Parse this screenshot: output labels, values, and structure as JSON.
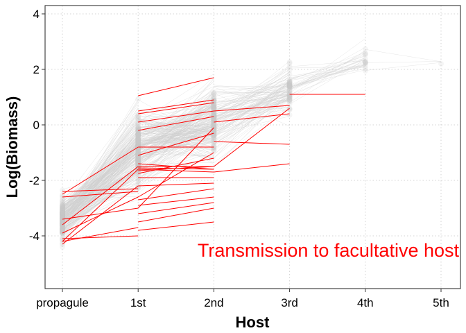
{
  "chart_data": {
    "type": "line",
    "xlabel": "Host",
    "ylabel": "Log(Biomass)",
    "categories": [
      "propagule",
      "1st",
      "2nd",
      "3rd",
      "4th",
      "5th"
    ],
    "y_ticks": [
      -4,
      -2,
      0,
      2,
      4
    ],
    "ylim": [
      -5.9,
      4.3
    ],
    "grid": "dotted",
    "annotation": "Transmission to facultative host",
    "colors": {
      "background_series": "#cfcfcf",
      "highlight_series": "#ff0000",
      "points": "#c8c8c8",
      "grid": "#d3d3d3",
      "annotation": "#ff0000"
    },
    "series": [
      {
        "values": [
          -2.4,
          -2.3,
          null,
          null,
          null,
          null
        ]
      },
      {
        "values": [
          -2.5,
          -0.8,
          null,
          null,
          null,
          null
        ]
      },
      {
        "values": [
          -3.6,
          -1.5,
          null,
          null,
          null,
          null
        ]
      },
      {
        "values": [
          -4.2,
          -3.7,
          null,
          null,
          null,
          null
        ]
      },
      {
        "values": [
          -4.1,
          -4.0,
          null,
          null,
          null,
          null
        ]
      },
      {
        "values": [
          -4.3,
          -2.2,
          null,
          null,
          null,
          null
        ]
      },
      {
        "values": [
          -4.2,
          -1.6,
          null,
          null,
          null,
          null
        ]
      },
      {
        "values": [
          -2.6,
          -2.4,
          null,
          null,
          null,
          null
        ]
      },
      {
        "values": [
          -3.4,
          -3.0,
          null,
          null,
          null,
          null
        ]
      },
      {
        "values": [
          -3.9,
          -2.6,
          null,
          null,
          null,
          null
        ]
      },
      {
        "values": [
          null,
          1.05,
          1.7,
          null,
          null,
          null
        ]
      },
      {
        "values": [
          null,
          0.5,
          0.9,
          null,
          null,
          null
        ]
      },
      {
        "values": [
          null,
          0.4,
          0.8,
          null,
          null,
          null
        ]
      },
      {
        "values": [
          null,
          0.1,
          0.5,
          null,
          null,
          null
        ]
      },
      {
        "values": [
          null,
          -0.2,
          0.3,
          null,
          null,
          null
        ]
      },
      {
        "values": [
          null,
          -0.8,
          -0.8,
          null,
          null,
          null
        ]
      },
      {
        "values": [
          null,
          -1.1,
          -0.3,
          null,
          null,
          null
        ]
      },
      {
        "values": [
          null,
          -1.4,
          -1.6,
          null,
          null,
          null
        ]
      },
      {
        "values": [
          null,
          -1.5,
          -1.5,
          null,
          null,
          null
        ]
      },
      {
        "values": [
          null,
          -1.55,
          -1.6,
          null,
          null,
          null
        ]
      },
      {
        "values": [
          null,
          -1.6,
          -1.7,
          null,
          null,
          null
        ]
      },
      {
        "values": [
          null,
          -1.65,
          -1.5,
          null,
          null,
          null
        ]
      },
      {
        "values": [
          null,
          -1.75,
          -1.2,
          null,
          null,
          null
        ]
      },
      {
        "values": [
          null,
          -1.9,
          -1.9,
          null,
          null,
          null
        ]
      },
      {
        "values": [
          null,
          -2.2,
          -2.1,
          null,
          null,
          null
        ]
      },
      {
        "values": [
          null,
          -2.6,
          -1.0,
          null,
          null,
          null
        ]
      },
      {
        "values": [
          null,
          -2.7,
          -2.3,
          null,
          null,
          null
        ]
      },
      {
        "values": [
          null,
          -2.9,
          -2.6,
          null,
          null,
          null
        ]
      },
      {
        "values": [
          null,
          -3.2,
          -2.8,
          null,
          null,
          null
        ]
      },
      {
        "values": [
          null,
          -3.5,
          -3.0,
          null,
          null,
          null
        ]
      },
      {
        "values": [
          null,
          -3.8,
          -3.5,
          null,
          null,
          null
        ]
      },
      {
        "values": [
          null,
          -3.0,
          -0.1,
          null,
          null,
          null
        ]
      },
      {
        "values": [
          null,
          null,
          0.5,
          0.7,
          null,
          null
        ]
      },
      {
        "values": [
          null,
          null,
          0.1,
          0.4,
          null,
          null
        ]
      },
      {
        "values": [
          null,
          null,
          -0.6,
          -0.7,
          null,
          null
        ]
      },
      {
        "values": [
          null,
          null,
          -1.5,
          0.6,
          null,
          null
        ]
      },
      {
        "values": [
          null,
          null,
          -1.7,
          -1.4,
          null,
          null
        ]
      },
      {
        "values": [
          null,
          null,
          null,
          1.1,
          1.1,
          null
        ]
      }
    ]
  }
}
